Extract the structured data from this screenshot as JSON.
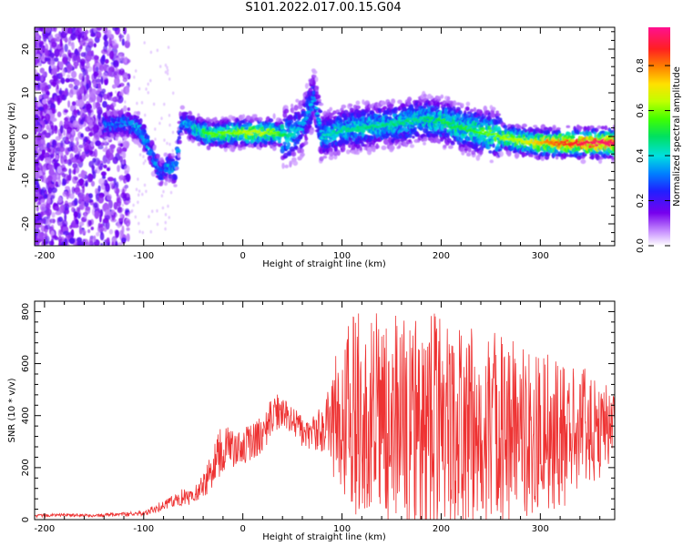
{
  "title": "S101.2022.017.00.15.G04",
  "chart_data": [
    {
      "type": "heatmap",
      "xlabel": "Height of straight line (km)",
      "ylabel": "Frequency (Hz)",
      "xlim": [
        -210,
        375
      ],
      "ylim": [
        -25,
        25
      ],
      "xticks": [
        -200,
        -100,
        0,
        100,
        200,
        300
      ],
      "yticks": [
        -20,
        -10,
        0,
        10,
        20
      ],
      "colorbar": {
        "label": "Normalized spectral amplitude",
        "ticks": [
          "0.0",
          "0.2",
          "0.4",
          "0.6",
          "0.8"
        ],
        "range": [
          0,
          0.97
        ]
      },
      "ridge": [
        {
          "x": -140,
          "f": 2.5,
          "a": 0.35
        },
        {
          "x": -120,
          "f": 3.0,
          "a": 0.35
        },
        {
          "x": -105,
          "f": 2.0,
          "a": 0.4
        },
        {
          "x": -95,
          "f": -2.0,
          "a": 0.4
        },
        {
          "x": -88,
          "f": -6.0,
          "a": 0.35
        },
        {
          "x": -82,
          "f": -8.5,
          "a": 0.3
        },
        {
          "x": -75,
          "f": -6.5,
          "a": 0.4
        },
        {
          "x": -68,
          "f": -8.0,
          "a": 0.45
        },
        {
          "x": -62,
          "f": 3.5,
          "a": 0.35
        },
        {
          "x": -50,
          "f": 2.0,
          "a": 0.45
        },
        {
          "x": -35,
          "f": 0.5,
          "a": 0.55
        },
        {
          "x": -10,
          "f": 0.8,
          "a": 0.6
        },
        {
          "x": 10,
          "f": 0.8,
          "a": 0.65
        },
        {
          "x": 30,
          "f": 1.0,
          "a": 0.6
        },
        {
          "x": 45,
          "f": 0.0,
          "a": 0.45
        },
        {
          "x": 60,
          "f": 2.0,
          "a": 0.35
        },
        {
          "x": 72,
          "f": 9.0,
          "a": 0.35
        },
        {
          "x": 80,
          "f": 0.0,
          "a": 0.4
        },
        {
          "x": 100,
          "f": 1.5,
          "a": 0.45
        },
        {
          "x": 120,
          "f": 2.0,
          "a": 0.45
        },
        {
          "x": 140,
          "f": 2.5,
          "a": 0.45
        },
        {
          "x": 160,
          "f": 3.0,
          "a": 0.45
        },
        {
          "x": 180,
          "f": 4.0,
          "a": 0.45
        },
        {
          "x": 200,
          "f": 3.5,
          "a": 0.5
        },
        {
          "x": 220,
          "f": 2.0,
          "a": 0.5
        },
        {
          "x": 240,
          "f": 1.0,
          "a": 0.55
        },
        {
          "x": 260,
          "f": 0.0,
          "a": 0.6
        },
        {
          "x": 280,
          "f": -1.0,
          "a": 0.65
        },
        {
          "x": 300,
          "f": -1.5,
          "a": 0.75
        },
        {
          "x": 320,
          "f": -1.5,
          "a": 0.85
        },
        {
          "x": 340,
          "f": -1.5,
          "a": 0.9
        },
        {
          "x": 360,
          "f": -1.5,
          "a": 0.95
        },
        {
          "x": 375,
          "f": -1.5,
          "a": 0.95
        }
      ]
    },
    {
      "type": "line",
      "xlabel": "Height of straight line (km)",
      "ylabel": "SNR (10 * v/v)",
      "xlim": [
        -210,
        375
      ],
      "ylim": [
        0,
        840
      ],
      "xticks": [
        -200,
        -100,
        0,
        100,
        200,
        300
      ],
      "yticks": [
        0,
        200,
        400,
        600,
        800
      ],
      "color": "#ee3333",
      "series": [
        {
          "x": [
            -210,
            -180,
            -150,
            -120,
            -100,
            -80,
            -60,
            -45,
            -30,
            -20,
            -10,
            0,
            10,
            20,
            30,
            40,
            50,
            60,
            70,
            80,
            95,
            110,
            140,
            170,
            200,
            230,
            260,
            290,
            320,
            350,
            375
          ],
          "y": [
            15,
            18,
            15,
            20,
            25,
            55,
            90,
            100,
            200,
            300,
            270,
            280,
            300,
            330,
            400,
            430,
            390,
            340,
            330,
            350,
            400,
            400,
            380,
            370,
            360,
            350,
            340,
            340,
            330,
            340,
            380
          ],
          "spread": [
            6,
            6,
            6,
            8,
            10,
            20,
            35,
            40,
            80,
            110,
            70,
            70,
            70,
            80,
            80,
            80,
            60,
            60,
            70,
            90,
            180,
            250,
            260,
            270,
            270,
            260,
            240,
            200,
            180,
            150,
            80
          ]
        }
      ]
    }
  ]
}
